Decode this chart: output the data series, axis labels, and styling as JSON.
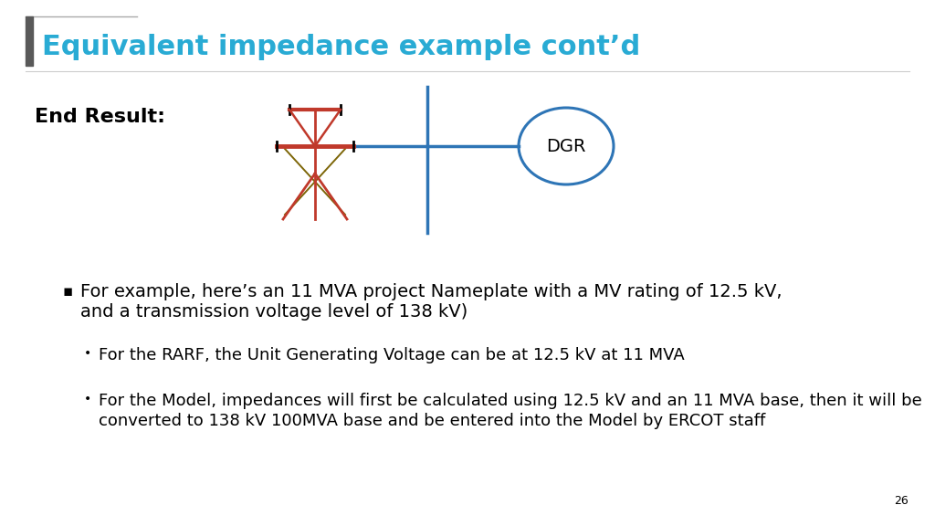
{
  "title": "Equivalent impedance example cont’d",
  "title_color": "#29ABD4",
  "title_fontsize": 22,
  "accent_bar_color": "#4D4D4D",
  "background_color": "#ffffff",
  "section_label": "End Result:",
  "dgr_label": "DGR",
  "dgr_circle_color": "#2E75B6",
  "dgr_line_color": "#2E75B6",
  "tower_color_red": "#C0392B",
  "tower_color_dark": "#7D6608",
  "page_number": "26",
  "bullet1_text1": "For example, here’s an 11 MVA project Nameplate with a MV rating of 12.5 kV,",
  "bullet1_text2": "and a transmission voltage level of 138 kV)",
  "sub_bullet1_text": "For the RARF, the Unit Generating Voltage can be at 12.5 kV at 11 MVA",
  "sub_bullet2_text1": "For the Model, impedances will first be calculated using 12.5 kV and an 11 MVA base, then it will be",
  "sub_bullet2_text2": "converted to 138 kV 100MVA base and be entered into the Model by ERCOT staff",
  "text_fontsize": 14,
  "sub_text_fontsize": 13
}
